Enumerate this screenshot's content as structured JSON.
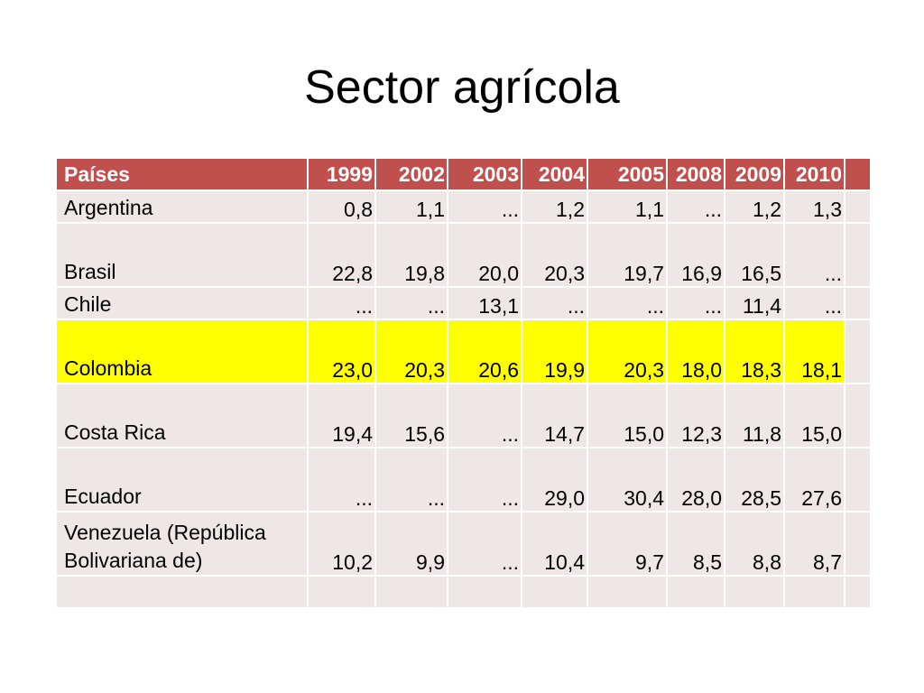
{
  "slide": {
    "title": "Sector agrícola"
  },
  "colors": {
    "header_bg": "#c0504d",
    "row_bg": "#efe6e6",
    "highlight_bg": "#ffff00",
    "header_text": "#ffffff"
  },
  "table": {
    "headers": [
      "Países",
      "1999",
      "2002",
      "2003",
      "2004",
      "2005",
      "2008",
      "2009",
      "2010",
      ""
    ],
    "rows": [
      {
        "name": "Argentina",
        "values": [
          "0,8",
          "1,1",
          "...",
          "1,2",
          "1,1",
          "...",
          "1,2",
          "1,3"
        ],
        "highlight": false,
        "tall": false
      },
      {
        "name": "Brasil",
        "values": [
          "22,8",
          "19,8",
          "20,0",
          "20,3",
          "19,7",
          "16,9",
          "16,5",
          "..."
        ],
        "highlight": false,
        "tall": true
      },
      {
        "name": "Chile",
        "values": [
          "...",
          "...",
          "13,1",
          "...",
          "...",
          "...",
          "11,4",
          "..."
        ],
        "highlight": false,
        "tall": false
      },
      {
        "name": "Colombia",
        "values": [
          "23,0",
          "20,3",
          "20,6",
          "19,9",
          "20,3",
          "18,0",
          "18,3",
          "18,1"
        ],
        "highlight": true,
        "tall": true
      },
      {
        "name": "Costa Rica",
        "values": [
          "19,4",
          "15,6",
          "...",
          "14,7",
          "15,0",
          "12,3",
          "11,8",
          "15,0"
        ],
        "highlight": false,
        "tall": true
      },
      {
        "name": "Ecuador",
        "values": [
          "...",
          "...",
          "...",
          "29,0",
          "30,4",
          "28,0",
          "28,5",
          "27,6"
        ],
        "highlight": false,
        "tall": true
      },
      {
        "name": "Venezuela (República Bolivariana de)",
        "values": [
          "10,2",
          "9,9",
          "...",
          "10,4",
          "9,7",
          "8,5",
          "8,8",
          "8,7"
        ],
        "highlight": false,
        "tall": true
      },
      {
        "name": "",
        "values": [
          "",
          "",
          "",
          "",
          "",
          "",
          "",
          ""
        ],
        "highlight": false,
        "tall": false
      }
    ]
  }
}
